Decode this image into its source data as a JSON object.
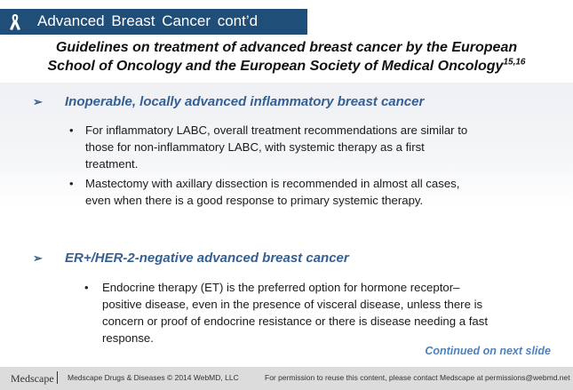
{
  "header": {
    "title": "Advanced  Breast  Cancer  cont’d",
    "ribbon_icon": "awareness-ribbon-icon"
  },
  "heading": {
    "line1": "Guidelines on treatment of advanced breast cancer by the European",
    "line2": "School of Oncology and the European Society of Medical Oncology",
    "superscript": "15,16"
  },
  "sections": [
    {
      "title": "Inoperable,  locally  advanced  inflammatory  breast  cancer",
      "bullets": [
        [
          "For inflammatory LABC, overall treatment  recommendations  are similar to",
          "those for non-inflammatory  LABC, with systemic therapy as a first",
          "treatment."
        ],
        [
          "Mastectomy with axillary dissection is recommended  in almost all cases,",
          "even when there is a good response to primary systemic therapy."
        ]
      ]
    },
    {
      "title": "ER+/HER-2-negative  advanced  breast  cancer",
      "bullets": [
        [
          "Endocrine therapy (ET) is the preferred option for hormone receptor–",
          "positive disease, even in the presence of visceral disease, unless there is",
          "concern or proof of endocrine resistance or there is disease needing a fast",
          "response."
        ]
      ]
    }
  ],
  "continued": "Continued on next slide",
  "footer": {
    "logo": "Medscape",
    "copyright": "Medscape  Drugs & Diseases  © 2014   WebMD,  LLC",
    "permission": "For permission  to reuse this content,  please  contact  Medscape  at permissions@webmd.net"
  },
  "colors": {
    "title_bar": "#1f4e79",
    "section_heading": "#365f91",
    "continued": "#4f81bd",
    "footer_bg": "#dcdcdc"
  }
}
